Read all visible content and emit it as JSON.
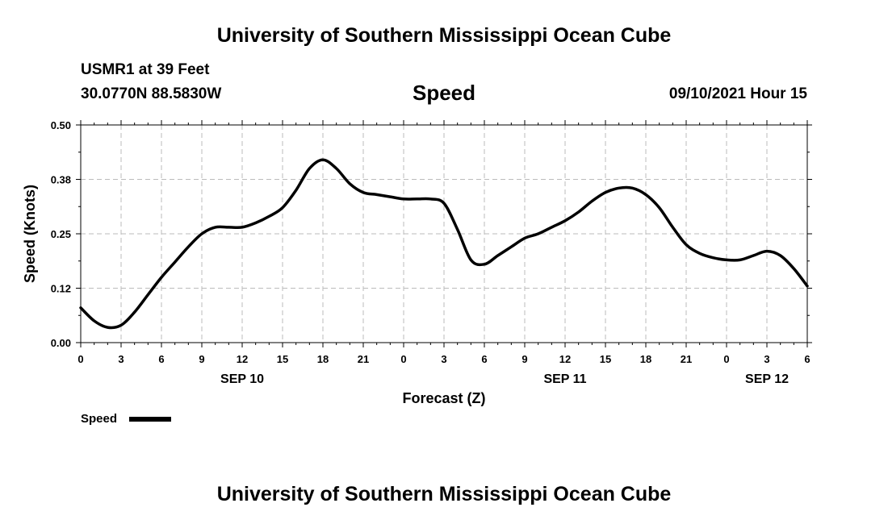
{
  "header": {
    "title": "University of Southern Mississippi Ocean Cube",
    "station": "USMR1 at 39 Feet",
    "coordinates": "30.0770N  88.5830W",
    "datetime": "09/10/2021 Hour 15"
  },
  "footer": {
    "title": "University of Southern Mississippi Ocean Cube"
  },
  "colors": {
    "line": "#000000",
    "grid": "#bbbbbb",
    "background": "#ffffff"
  },
  "chart_data": {
    "type": "line",
    "title": "Speed",
    "xlabel": "Forecast (Z)",
    "ylabel": "Speed (Knots)",
    "ylim": [
      0,
      0.5
    ],
    "yticks": [
      "0.00",
      "0.12",
      "0.25",
      "0.38",
      "0.50"
    ],
    "xlim": [
      0,
      54
    ],
    "xtick_labels": [
      "0",
      "3",
      "6",
      "9",
      "12",
      "15",
      "18",
      "21",
      "0",
      "3",
      "6",
      "9",
      "12",
      "15",
      "18",
      "21",
      "0",
      "3",
      "6"
    ],
    "date_labels": [
      {
        "label": "SEP 10",
        "hour": 12
      },
      {
        "label": "SEP 11",
        "hour": 36
      },
      {
        "label": "SEP 12",
        "hour": 51
      }
    ],
    "grid": true,
    "legend_position": "bottom-left",
    "series": [
      {
        "name": "Speed",
        "x": [
          0,
          1,
          2,
          3,
          4,
          5,
          6,
          7,
          8,
          9,
          10,
          11,
          12,
          13,
          14,
          15,
          16,
          17,
          18,
          19,
          20,
          21,
          22,
          23,
          24,
          25,
          26,
          27,
          28,
          29,
          30,
          31,
          32,
          33,
          34,
          35,
          36,
          37,
          38,
          39,
          40,
          41,
          42,
          43,
          44,
          45,
          46,
          47,
          48,
          49,
          50,
          51,
          52,
          53,
          54
        ],
        "y": [
          0.08,
          0.05,
          0.035,
          0.04,
          0.07,
          0.11,
          0.15,
          0.185,
          0.22,
          0.25,
          0.265,
          0.265,
          0.265,
          0.275,
          0.29,
          0.31,
          0.35,
          0.4,
          0.42,
          0.4,
          0.365,
          0.345,
          0.34,
          0.335,
          0.33,
          0.33,
          0.33,
          0.32,
          0.26,
          0.19,
          0.18,
          0.2,
          0.22,
          0.24,
          0.25,
          0.265,
          0.28,
          0.3,
          0.325,
          0.345,
          0.355,
          0.355,
          0.34,
          0.31,
          0.265,
          0.225,
          0.205,
          0.195,
          0.19,
          0.19,
          0.2,
          0.21,
          0.2,
          0.17,
          0.13
        ]
      }
    ]
  }
}
